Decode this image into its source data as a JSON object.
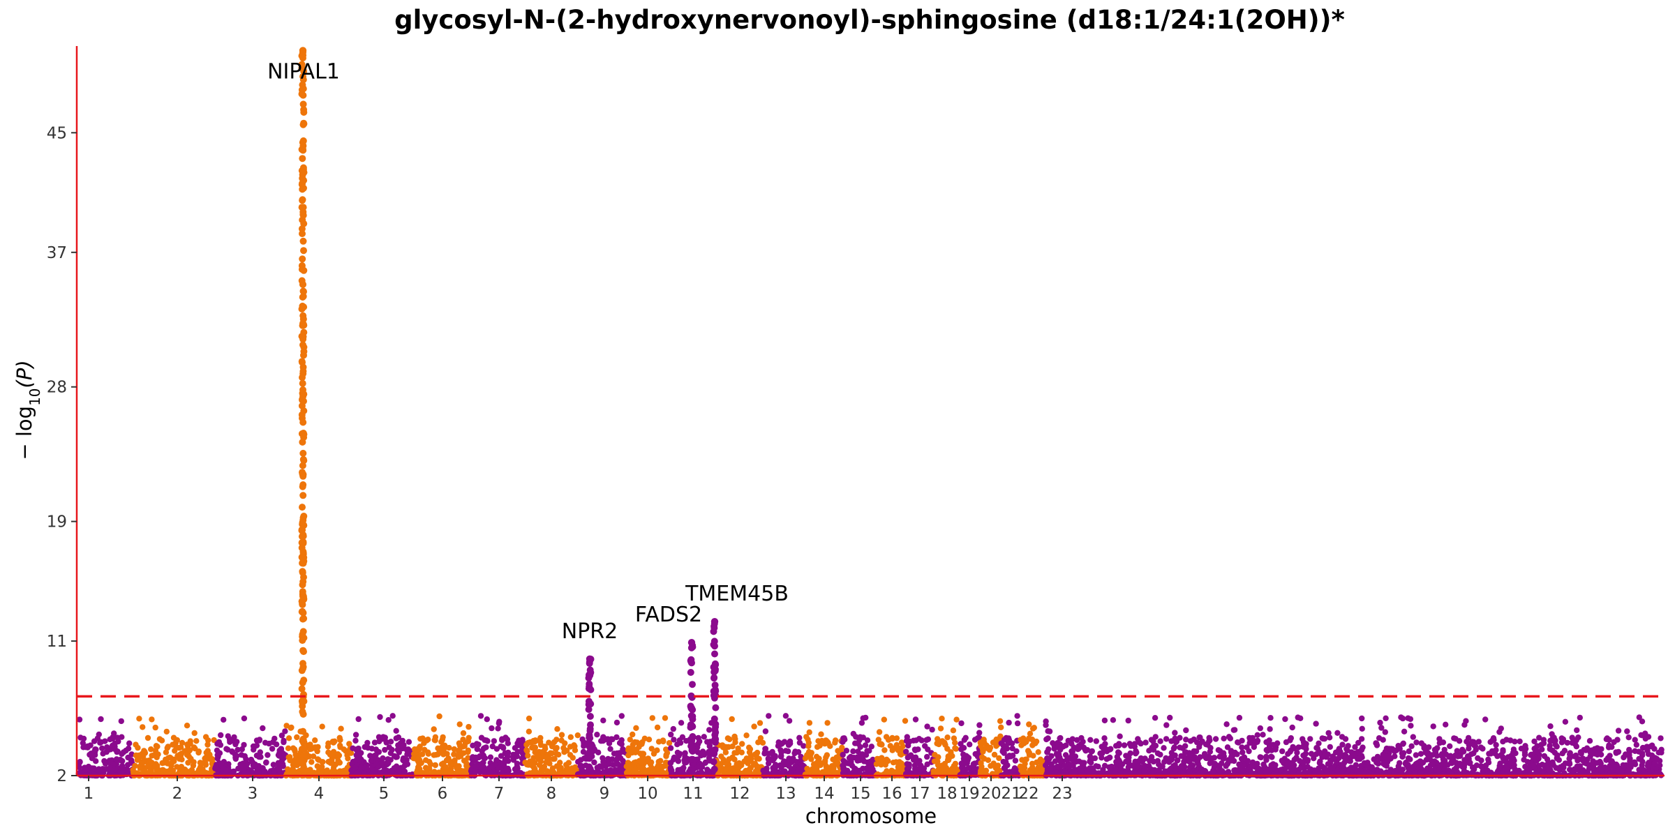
{
  "chart_data": {
    "type": "scatter",
    "title": "glycosyl-N-(2-hydroxynervonoyl)-sphingosine (d18:1/24:1(2OH))*",
    "xlabel": "chromosome",
    "ylabel": "−log10(P)",
    "ylabel_main": "− log",
    "ylabel_sub": "10",
    "ylabel_var": "(P)",
    "ylim": [
      2,
      50.8
    ],
    "yticks": [
      2,
      11,
      19,
      28,
      37,
      45
    ],
    "significance_line": 7.3,
    "colors": {
      "odd": "#8b0a8d",
      "even": "#ee750a",
      "axis": "#e8161b",
      "threshold": "#e8161b"
    },
    "chromosomes": [
      {
        "label": "1",
        "x": 127
      },
      {
        "label": "2",
        "x": 254
      },
      {
        "label": "3",
        "x": 362
      },
      {
        "label": "4",
        "x": 457
      },
      {
        "label": "5",
        "x": 550
      },
      {
        "label": "6",
        "x": 634
      },
      {
        "label": "7",
        "x": 715
      },
      {
        "label": "8",
        "x": 790
      },
      {
        "label": "9",
        "x": 866
      },
      {
        "label": "10",
        "x": 928
      },
      {
        "label": "11",
        "x": 993
      },
      {
        "label": "12",
        "x": 1060
      },
      {
        "label": "13",
        "x": 1126
      },
      {
        "label": "14",
        "x": 1181
      },
      {
        "label": "15",
        "x": 1233
      },
      {
        "label": "16",
        "x": 1278
      },
      {
        "label": "17",
        "x": 1318
      },
      {
        "label": "18",
        "x": 1357
      },
      {
        "label": "19",
        "x": 1389
      },
      {
        "label": "20",
        "x": 1420
      },
      {
        "label": "21",
        "x": 1449
      },
      {
        "label": "22",
        "x": 1474
      },
      {
        "label": "23",
        "x": 1522
      }
    ],
    "peaks": [
      {
        "gene": "NIPAL1",
        "chromosome": "4",
        "x": 434,
        "max_y": 50.5
      },
      {
        "gene": "NPR2",
        "chromosome": "9",
        "x": 845,
        "max_y": 9.8
      },
      {
        "gene": "FADS2",
        "chromosome": "11",
        "x": 991,
        "max_y": 10.9
      },
      {
        "gene": "TMEM45B",
        "chromosome": "11",
        "x": 1024,
        "max_y": 12.3
      }
    ]
  }
}
